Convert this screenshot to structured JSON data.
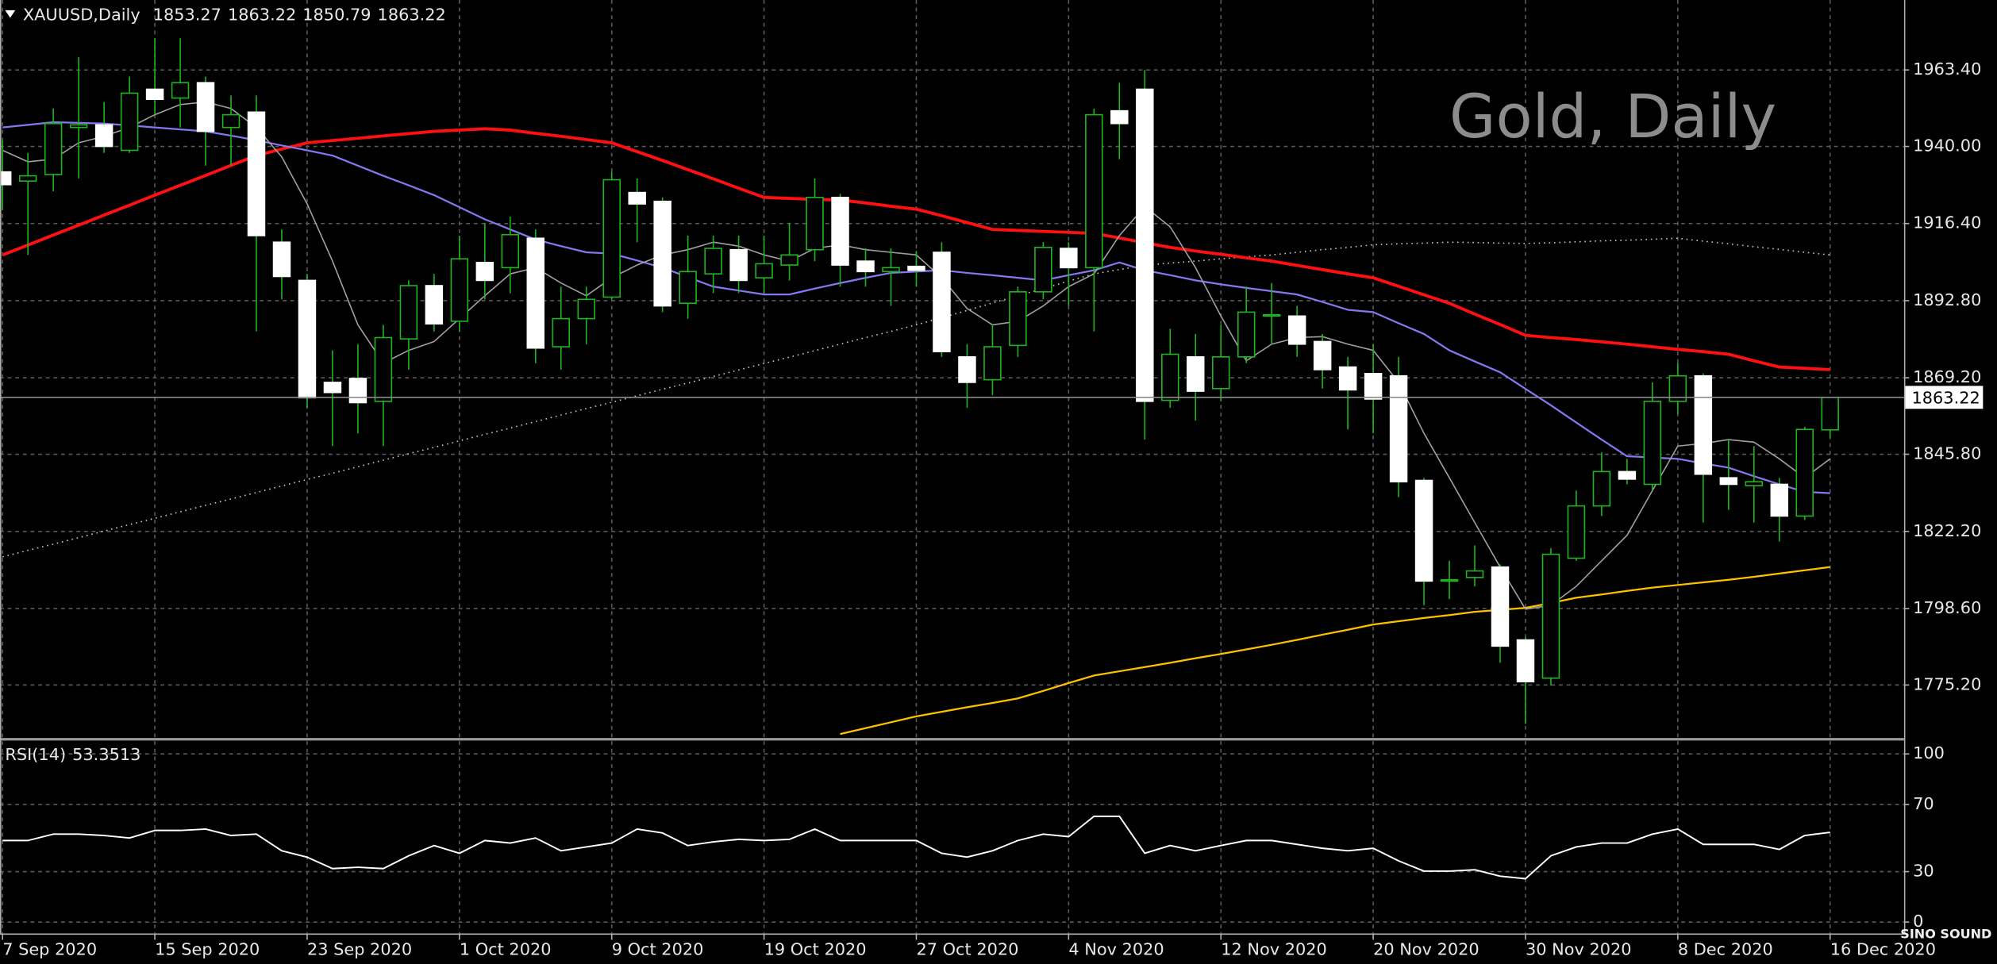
{
  "chart_data": [
    {
      "type": "candlestick",
      "symbol": "XAUUSD,Daily",
      "watermark": "Gold, Daily",
      "logo": "SINO SOUND",
      "categories": [
        "7 Sep 2020",
        null,
        null,
        null,
        null,
        null,
        "15 Sep 2020",
        null,
        null,
        null,
        null,
        null,
        "23 Sep 2020",
        null,
        null,
        null,
        null,
        null,
        "1 Oct 2020",
        null,
        null,
        null,
        null,
        null,
        "9 Oct 2020",
        null,
        null,
        null,
        null,
        null,
        "19 Oct 2020",
        null,
        null,
        null,
        null,
        null,
        "27 Oct 2020",
        null,
        null,
        null,
        null,
        null,
        "4 Nov 2020",
        null,
        null,
        null,
        null,
        null,
        "12 Nov 2020",
        null,
        null,
        null,
        null,
        null,
        "20 Nov 2020",
        null,
        null,
        null,
        null,
        null,
        "30 Nov 2020",
        null,
        null,
        null,
        null,
        null,
        "8 Dec 2020",
        null,
        null,
        null,
        null,
        null,
        "16 Dec 2020"
      ],
      "open": [
        1932.2,
        1929.4,
        1931.4,
        1945.8,
        1946.6,
        1938.8,
        1957.5,
        1954.8,
        1959.5,
        1945.8,
        1950.5,
        1910.7,
        1899.0,
        1867.8,
        1869.0,
        1862.0,
        1881.1,
        1897.4,
        1886.5,
        1904.5,
        1902.9,
        1911.9,
        1878.7,
        1887.3,
        1893.9,
        1925.9,
        1923.2,
        1892.0,
        1901.0,
        1908.4,
        1899.8,
        1903.7,
        1908.4,
        1924.4,
        1904.9,
        1901.7,
        1903.3,
        1907.6,
        1875.6,
        1868.6,
        1879.1,
        1895.5,
        1908.8,
        1902.9,
        1950.9,
        1957.5,
        1862.3,
        1875.6,
        1865.9,
        1875.6,
        1888.1,
        1888.1,
        1880.3,
        1872.5,
        1870.5,
        1869.8,
        1837.8,
        1807.0,
        1808.1,
        1811.3,
        1789.0,
        1777.3,
        1814.0,
        1830.0,
        1840.5,
        1836.6,
        1862.0,
        1869.8,
        1838.6,
        1836.2,
        1836.6,
        1826.9,
        1853.27
      ],
      "high": [
        1941.9,
        1938.0,
        1951.6,
        1967.3,
        1953.6,
        1961.4,
        1973.1,
        1973.1,
        1961.4,
        1955.6,
        1955.6,
        1914.6,
        1901.0,
        1877.6,
        1879.5,
        1885.4,
        1899.0,
        1901.0,
        1912.7,
        1916.6,
        1918.5,
        1914.6,
        1897.1,
        1897.1,
        1932.2,
        1930.2,
        1924.4,
        1912.7,
        1912.7,
        1912.7,
        1912.7,
        1916.6,
        1930.2,
        1925.5,
        1908.8,
        1908.8,
        1908.0,
        1910.7,
        1879.5,
        1885.4,
        1897.1,
        1910.7,
        1910.7,
        1951.6,
        1959.5,
        1963.4,
        1884.2,
        1882.6,
        1885.4,
        1897.1,
        1898.2,
        1891.2,
        1882.6,
        1875.6,
        1879.5,
        1875.6,
        1838.6,
        1813.2,
        1817.9,
        1812.1,
        1789.8,
        1817.1,
        1834.7,
        1846.4,
        1844.4,
        1867.8,
        1873.7,
        1870.5,
        1850.3,
        1848.3,
        1838.6,
        1854.2,
        1863.22
      ],
      "low": [
        1920.5,
        1906.8,
        1926.3,
        1930.2,
        1938.0,
        1938.0,
        1949.7,
        1945.8,
        1934.1,
        1934.1,
        1883.4,
        1893.2,
        1860.0,
        1848.3,
        1852.2,
        1848.3,
        1871.7,
        1883.4,
        1883.4,
        1893.2,
        1895.1,
        1873.7,
        1871.7,
        1879.5,
        1893.2,
        1910.7,
        1889.3,
        1887.3,
        1895.1,
        1895.1,
        1895.1,
        1899.0,
        1904.9,
        1897.1,
        1897.1,
        1891.2,
        1897.1,
        1875.6,
        1860.0,
        1863.9,
        1875.6,
        1893.2,
        1891.2,
        1883.4,
        1936.1,
        1850.3,
        1860.0,
        1856.1,
        1862.0,
        1873.7,
        1879.5,
        1875.6,
        1865.9,
        1853.4,
        1852.2,
        1832.7,
        1799.6,
        1801.5,
        1805.4,
        1782.0,
        1763.3,
        1775.0,
        1813.2,
        1826.9,
        1836.6,
        1834.7,
        1858.1,
        1824.9,
        1828.8,
        1824.9,
        1819.1,
        1825.7,
        1850.79
      ],
      "close": [
        1928.3,
        1931.0,
        1947.0,
        1946.6,
        1940.0,
        1956.3,
        1954.4,
        1959.5,
        1944.6,
        1949.7,
        1912.7,
        1900.2,
        1863.1,
        1864.7,
        1861.6,
        1881.5,
        1897.4,
        1885.7,
        1905.6,
        1899.0,
        1913.0,
        1878.3,
        1887.3,
        1893.2,
        1929.8,
        1922.4,
        1891.2,
        1901.7,
        1908.8,
        1899.0,
        1904.1,
        1906.8,
        1924.4,
        1903.7,
        1901.7,
        1902.9,
        1902.1,
        1877.2,
        1867.8,
        1878.7,
        1895.5,
        1909.1,
        1902.9,
        1949.7,
        1947.0,
        1862.0,
        1876.4,
        1865.1,
        1875.6,
        1889.3,
        1888.5,
        1879.5,
        1871.7,
        1865.5,
        1862.7,
        1837.4,
        1807.0,
        1807.4,
        1810.1,
        1787.1,
        1776.2,
        1815.2,
        1830.0,
        1840.5,
        1838.2,
        1862.0,
        1869.8,
        1839.7,
        1836.6,
        1837.4,
        1826.9,
        1853.4,
        1863.22
      ],
      "colors": {
        "up": "#000000",
        "down": "#ffffff",
        "wick": "#1fb51f"
      },
      "series": [
        {
          "color": "#c8c8c8",
          "style": "dotted",
          "values": [
            1814.4,
            1816.4,
            1818.3,
            1820.3,
            1822.3,
            1824.3,
            1826.2,
            1828.2,
            1830.2,
            1832.1,
            1834.1,
            1836.1,
            1838.1,
            1840.0,
            1842.0,
            1844.0,
            1846.0,
            1847.9,
            1849.9,
            1851.9,
            1853.8,
            1855.8,
            1857.8,
            1859.8,
            1861.7,
            1863.7,
            1865.7,
            1867.6,
            1869.6,
            1871.6,
            1873.6,
            1875.5,
            1877.5,
            1879.5,
            1881.5,
            1883.4,
            1885.4,
            1887.6,
            1889.8,
            1892.1,
            1894.3,
            1896.5,
            1898.8,
            1901.0,
            1902.3,
            1903.7,
            1904.3,
            1904.9,
            1905.6,
            1906.2,
            1906.8,
            1907.6,
            1908.4,
            1909.1,
            1909.9,
            1910.2,
            1910.4,
            1910.7,
            1910.6,
            1910.4,
            1910.3,
            1910.5,
            1910.8,
            1911.1,
            1911.3,
            1911.6,
            1911.9,
            1911.0,
            1910.2,
            1909.3,
            1908.5,
            1907.6,
            1906.8
          ]
        },
        {
          "color": "#ffc000",
          "style": "solid",
          "values": [
            null,
            null,
            null,
            null,
            null,
            null,
            null,
            null,
            null,
            null,
            null,
            null,
            null,
            null,
            null,
            null,
            null,
            null,
            null,
            null,
            null,
            null,
            null,
            null,
            null,
            null,
            null,
            null,
            null,
            null,
            null,
            null,
            null,
            1760.2,
            1762.0,
            1763.8,
            1765.6,
            1767.0,
            1768.4,
            1769.7,
            1771.1,
            1773.4,
            1775.8,
            1778.1,
            1779.4,
            1780.7,
            1782.0,
            1783.4,
            1784.7,
            1786.1,
            1787.5,
            1789.0,
            1790.6,
            1792.1,
            1793.7,
            1794.7,
            1795.7,
            1796.6,
            1797.6,
            1798.2,
            1798.8,
            1800.3,
            1801.9,
            1802.9,
            1804.0,
            1805.0,
            1805.8,
            1806.6,
            1807.4,
            1808.3,
            1809.3,
            1810.3,
            1811.3
          ]
        },
        {
          "color": "#ff1010",
          "style": "thick",
          "values": [
            1906.8,
            1909.8,
            1912.9,
            1915.9,
            1919.0,
            1922.0,
            1925.1,
            1928.1,
            1931.1,
            1934.2,
            1937.2,
            1939.2,
            1941.1,
            1941.8,
            1942.5,
            1943.2,
            1943.9,
            1944.6,
            1945.0,
            1945.4,
            1945.0,
            1944.0,
            1943.1,
            1942.1,
            1941.1,
            1938.4,
            1935.7,
            1932.9,
            1930.1,
            1927.2,
            1924.4,
            1924.1,
            1923.8,
            1923.6,
            1922.7,
            1921.7,
            1920.8,
            1918.8,
            1916.7,
            1914.6,
            1914.3,
            1914.0,
            1913.7,
            1913.4,
            1912.0,
            1910.5,
            1909.1,
            1908.0,
            1907.0,
            1905.9,
            1904.9,
            1903.6,
            1902.3,
            1901.0,
            1899.8,
            1897.2,
            1894.6,
            1892.0,
            1888.7,
            1885.5,
            1882.2,
            1881.5,
            1880.9,
            1880.2,
            1879.5,
            1878.7,
            1877.9,
            1877.2,
            1876.4,
            1874.4,
            1872.5,
            1872.1,
            1871.7
          ]
        },
        {
          "color": "#8478f0",
          "style": "solid",
          "values": [
            1945.8,
            1946.6,
            1947.4,
            1947.2,
            1947.0,
            1946.4,
            1945.8,
            1945.2,
            1944.6,
            1943.3,
            1941.9,
            1940.3,
            1938.8,
            1937.2,
            1934.1,
            1931.0,
            1928.1,
            1925.1,
            1921.4,
            1917.7,
            1914.6,
            1911.5,
            1909.5,
            1907.6,
            1907.2,
            1905.1,
            1902.9,
            1900.0,
            1897.1,
            1895.9,
            1894.7,
            1894.7,
            1896.5,
            1898.2,
            1899.8,
            1901.3,
            1901.7,
            1902.1,
            1901.3,
            1900.6,
            1899.8,
            1899.0,
            1900.6,
            1902.1,
            1904.5,
            1902.1,
            1900.6,
            1899.0,
            1897.8,
            1896.7,
            1895.7,
            1894.7,
            1892.4,
            1890.0,
            1889.3,
            1885.9,
            1882.6,
            1877.6,
            1874.2,
            1870.9,
            1865.8,
            1860.8,
            1855.5,
            1850.3,
            1845.2,
            1844.8,
            1844.4,
            1843.0,
            1841.7,
            1839.1,
            1836.6,
            1834.3,
            1833.9
          ]
        },
        {
          "color": "#a0a0a0",
          "style": "thin",
          "values": [
            1938.8,
            1935.3,
            1936.1,
            1941.1,
            1943.1,
            1945.8,
            1949.7,
            1952.8,
            1953.6,
            1951.6,
            1945.8,
            1936.8,
            1922.4,
            1904.9,
            1885.4,
            1873.7,
            1877.6,
            1880.3,
            1887.3,
            1894.3,
            1901.0,
            1902.9,
            1898.2,
            1894.3,
            1899.8,
            1903.7,
            1906.8,
            1908.4,
            1910.7,
            1909.5,
            1906.8,
            1904.9,
            1908.8,
            1909.9,
            1908.4,
            1907.6,
            1906.8,
            1899.8,
            1890.4,
            1885.4,
            1886.5,
            1891.2,
            1897.1,
            1901.0,
            1912.7,
            1921.6,
            1915.4,
            1902.9,
            1888.1,
            1874.4,
            1879.5,
            1881.5,
            1881.8,
            1879.5,
            1877.6,
            1867.8,
            1852.2,
            1838.6,
            1824.9,
            1811.3,
            1798.4,
            1799.6,
            1805.4,
            1813.2,
            1821.0,
            1834.7,
            1848.3,
            1849.1,
            1850.3,
            1849.5,
            1844.4,
            1838.6,
            1844.4
          ]
        }
      ],
      "ylim": [
        1758.8,
        1984.8
      ],
      "yticks": [
        {
          "value": 1775.2,
          "label": "1775.20"
        },
        {
          "value": 1798.6,
          "label": "1798.60"
        },
        {
          "value": 1822.2,
          "label": "1822.20"
        },
        {
          "value": 1845.8,
          "label": "1845.80"
        },
        {
          "value": 1869.2,
          "label": "1869.20"
        },
        {
          "value": 1892.8,
          "label": "1892.80"
        },
        {
          "value": 1916.4,
          "label": "1916.40"
        },
        {
          "value": 1940,
          "label": "1940.00"
        },
        {
          "value": 1963.4,
          "label": "1963.40"
        }
      ],
      "grid": true,
      "last_price_line": true
    },
    {
      "type": "line",
      "title": "RSI(14)",
      "series": [
        {
          "color": "#ffffff",
          "values": [
            48.5,
            48.5,
            52.3,
            52.3,
            51.5,
            50.0,
            54.5,
            54.5,
            55.3,
            51.5,
            52.3,
            42.4,
            38.6,
            31.8,
            32.6,
            31.8,
            39.4,
            45.5,
            40.9,
            48.5,
            47.0,
            50.0,
            42.4,
            44.7,
            47.0,
            55.3,
            53.0,
            45.5,
            47.7,
            49.2,
            48.5,
            49.2,
            55.3,
            48.5,
            48.5,
            48.5,
            48.5,
            40.9,
            38.6,
            42.4,
            48.5,
            52.3,
            50.8,
            62.9,
            62.9,
            40.9,
            45.5,
            42.4,
            45.5,
            48.5,
            48.5,
            46.2,
            43.9,
            42.4,
            43.9,
            36.4,
            30.3,
            30.3,
            31.1,
            27.3,
            25.8,
            39.4,
            44.7,
            47.0,
            47.0,
            52.3,
            55.3,
            46.2,
            46.2,
            46.2,
            43.2,
            51.5,
            53.3513
          ]
        }
      ],
      "ylim": [
        -6,
        107.6
      ],
      "yticks": [
        0,
        30,
        70,
        100
      ],
      "grid": true
    }
  ]
}
